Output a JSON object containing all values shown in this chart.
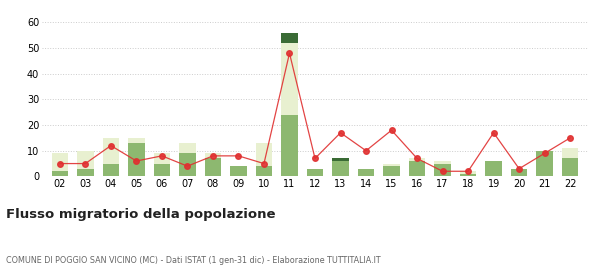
{
  "years": [
    "02",
    "03",
    "04",
    "05",
    "06",
    "07",
    "08",
    "09",
    "10",
    "11",
    "12",
    "13",
    "14",
    "15",
    "16",
    "17",
    "18",
    "19",
    "20",
    "21",
    "22"
  ],
  "iscritti_altri_comuni": [
    2,
    3,
    5,
    13,
    5,
    9,
    7,
    4,
    4,
    24,
    3,
    6,
    3,
    4,
    6,
    5,
    1,
    6,
    3,
    10,
    7
  ],
  "iscritti_estero": [
    7,
    7,
    10,
    2,
    4,
    4,
    2,
    0,
    9,
    28,
    0,
    0,
    0,
    1,
    1,
    1,
    1,
    0,
    0,
    0,
    4
  ],
  "iscritti_altri": [
    0,
    0,
    0,
    0,
    0,
    0,
    0,
    0,
    0,
    4,
    0,
    1,
    0,
    0,
    0,
    0,
    0,
    0,
    0,
    0,
    0
  ],
  "cancellati": [
    5,
    5,
    12,
    6,
    8,
    4,
    8,
    8,
    5,
    48,
    7,
    17,
    10,
    18,
    7,
    2,
    2,
    17,
    3,
    9,
    15
  ],
  "color_altri_comuni": "#8db870",
  "color_estero": "#e8f0d0",
  "color_altri": "#3a6b35",
  "color_cancellati": "#e03030",
  "ylim": [
    0,
    60
  ],
  "yticks": [
    0,
    10,
    20,
    30,
    40,
    50,
    60
  ],
  "title": "Flusso migratorio della popolazione",
  "subtitle": "COMUNE DI POGGIO SAN VICINO (MC) - Dati ISTAT (1 gen-31 dic) - Elaborazione TUTTITALIA.IT",
  "background_color": "#ffffff"
}
